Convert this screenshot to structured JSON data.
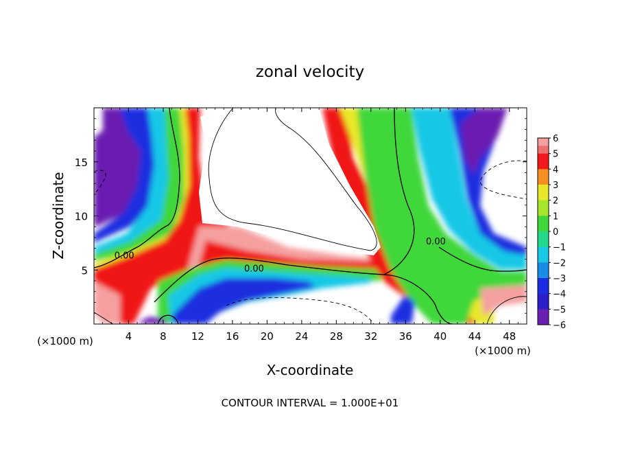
{
  "chart_data": {
    "type": "heatmap",
    "title": "zonal velocity",
    "xlabel": "X-coordinate",
    "ylabel": "Z-coordinate",
    "x_unit_label": "(×1000 m)",
    "y_unit_label": "(×1000 m)",
    "xlim": [
      0,
      50
    ],
    "ylim": [
      0,
      20
    ],
    "x_ticks": [
      4,
      8,
      12,
      16,
      20,
      24,
      28,
      32,
      36,
      40,
      44,
      48
    ],
    "y_ticks": [
      5,
      10,
      15
    ],
    "colorbar": {
      "levels": [
        6,
        5,
        4,
        3,
        2,
        1,
        0,
        -1,
        -2,
        -3,
        -4,
        -5,
        -6
      ],
      "min": -6,
      "max": 6
    },
    "contour_labels": [
      {
        "text": "0.00",
        "x": 3.5,
        "y": 6.2
      },
      {
        "text": "0.00",
        "x": 18.5,
        "y": 5.0
      },
      {
        "text": "0.00",
        "x": 39.5,
        "y": 7.5
      }
    ],
    "contour_interval_text": "CONTOUR INTERVAL = 1.000E+01",
    "grid": false,
    "legend": "right colorbar"
  }
}
